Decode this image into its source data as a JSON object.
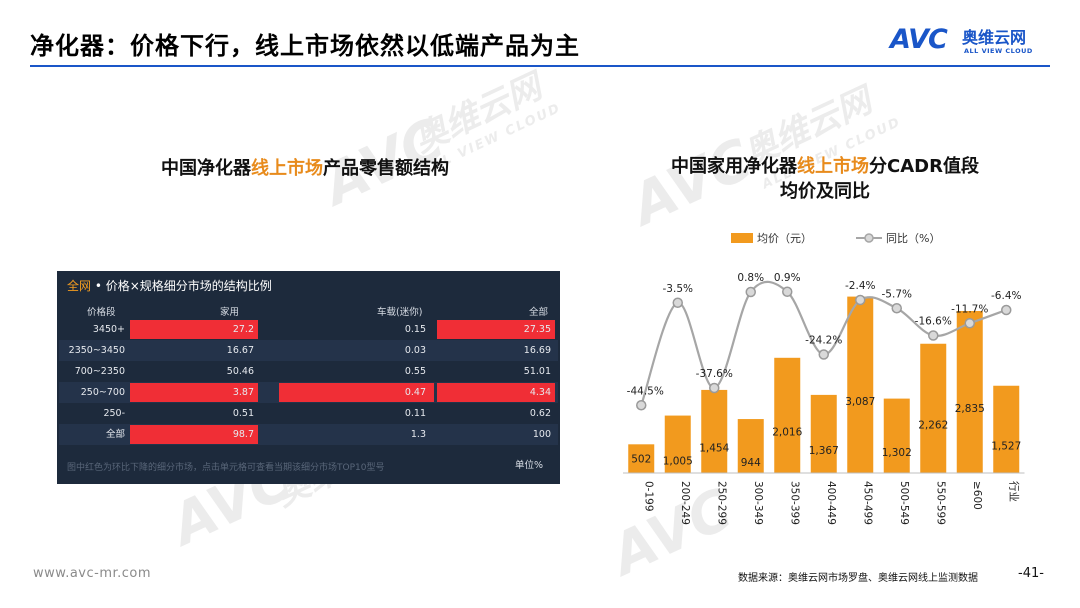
{
  "slide": {
    "title": "净化器：价格下行，线上市场依然以低端产品为主",
    "logo_mark": "AVC",
    "logo_cn": "奥维云网",
    "logo_en": "ALL VIEW CLOUD",
    "watermark_mark": "AVC",
    "watermark_cn": "奥维云网",
    "watermark_en": "ALL VIEW CLOUD",
    "footer_url": "www.avc-mr.com",
    "footer_source": "数据来源：奥维云网市场罗盘、奥维云网线上监测数据",
    "page_number": "-41-",
    "accent_color": "#1a56c8",
    "highlight_color": "#e88b1c"
  },
  "left_chart": {
    "heading_pre": "中国净化器",
    "heading_hl": "线上市场",
    "heading_post": "产品零售额结构",
    "panel_title_accent": "全网",
    "panel_title": " • 价格×规格细分市场的结构比例",
    "note": "图中红色为环比下降的细分市场，点击单元格可查看当期该细分市场TOP10型号",
    "unit": "单位%",
    "highlight_color": "#f02e36",
    "columns": [
      "价格段",
      "家用",
      "车载(迷你)",
      "全部"
    ]
  },
  "right_chart": {
    "heading_line1_pre": "中国家用净化器",
    "heading_line1_hl": "线上市场",
    "heading_line1_post": "分CADR值段",
    "heading_line2": "均价及同比",
    "bar_color": "#f29a1e",
    "line_color": "#a6a6a6"
  },
  "chart_data": [
    {
      "type": "table",
      "columns": [
        "价格段",
        "家用",
        "车载(迷你)",
        "全部"
      ],
      "rows": [
        [
          "3450+",
          "27.2",
          "0.15",
          "27.35"
        ],
        [
          "2350~3450",
          "16.67",
          "0.03",
          "16.69"
        ],
        [
          "700~2350",
          "50.46",
          "0.55",
          "51.01"
        ],
        [
          "250~700",
          "3.87",
          "0.47",
          "4.34"
        ],
        [
          "250-",
          "0.51",
          "0.11",
          "0.62"
        ],
        [
          "全部",
          "98.7",
          "1.3",
          "100"
        ]
      ],
      "highlighted": [
        [
          0,
          1
        ],
        [
          0,
          3
        ],
        [
          3,
          1
        ],
        [
          3,
          2
        ],
        [
          3,
          3
        ],
        [
          5,
          1
        ]
      ]
    },
    {
      "type": "bar",
      "categories": [
        "0-199",
        "200-249",
        "250-299",
        "300-349",
        "350-399",
        "400-449",
        "450-499",
        "500-549",
        "550-599",
        "≥600",
        "行业"
      ],
      "series": [
        {
          "name": "均价（元）",
          "type": "bar",
          "values": [
            502,
            1005,
            1454,
            944,
            2016,
            1367,
            3087,
            1302,
            2262,
            2835,
            1527
          ],
          "labels": [
            "502",
            "1,005",
            "1,454",
            "944",
            "2,016",
            "1,367",
            "3,087",
            "1,302",
            "2,262",
            "2,835",
            "1,527"
          ]
        },
        {
          "name": "同比（%）",
          "type": "line",
          "values": [
            -44.5,
            -3.5,
            -37.6,
            0.8,
            0.9,
            -24.2,
            -2.4,
            -5.7,
            -16.6,
            -11.7,
            -6.4
          ],
          "labels": [
            "-44.5%",
            "-3.5%",
            "-37.6%",
            "0.8%",
            "0.9%",
            "-24.2%",
            "-2.4%",
            "-5.7%",
            "-16.6%",
            "-11.7%",
            "-6.4%"
          ]
        }
      ],
      "legend_position": "top",
      "grid": false
    }
  ]
}
